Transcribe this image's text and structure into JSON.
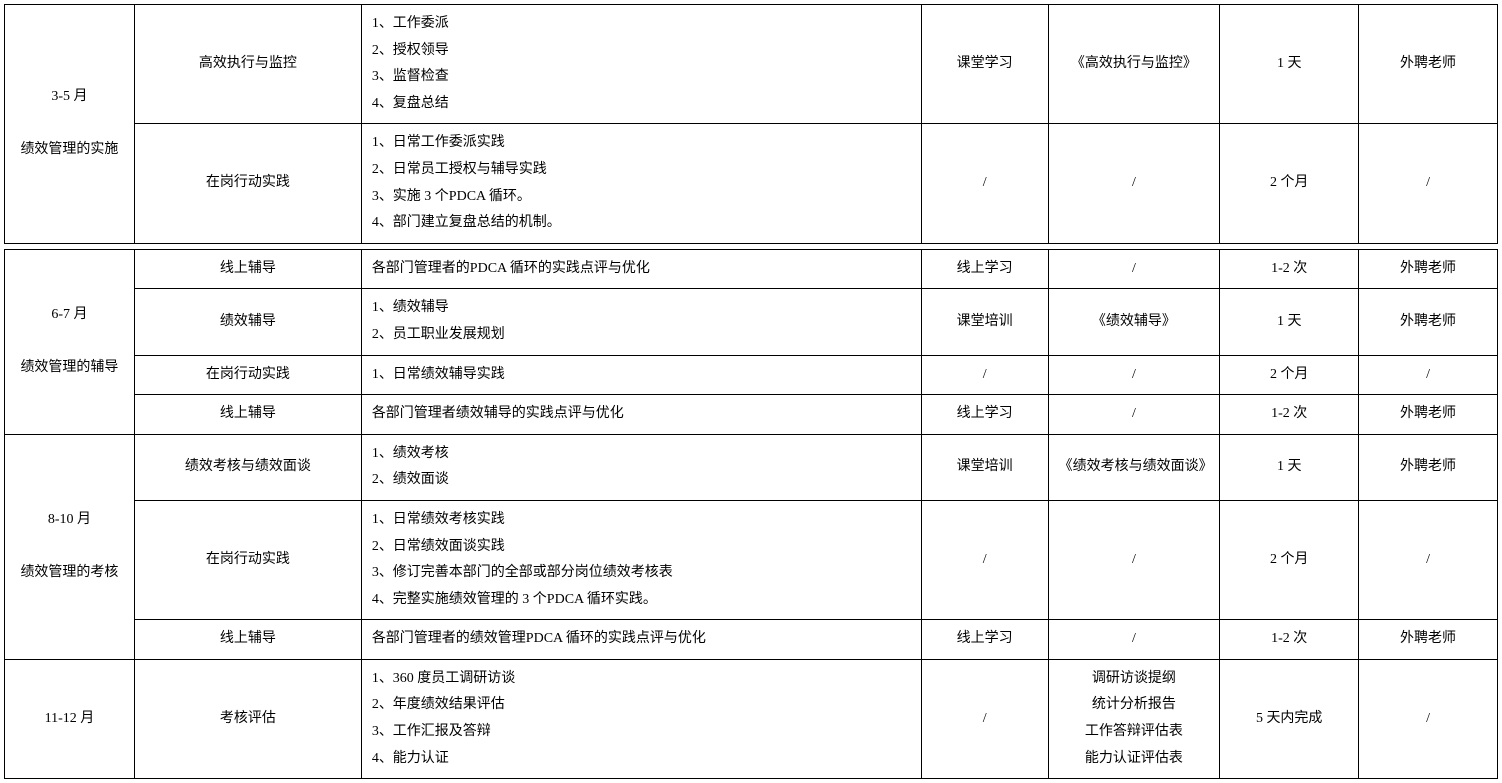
{
  "table": {
    "columns": [
      {
        "class": "c0",
        "align": "center"
      },
      {
        "class": "c1",
        "align": "center"
      },
      {
        "class": "c2",
        "align": "left"
      },
      {
        "class": "c3",
        "align": "center"
      },
      {
        "class": "c4",
        "align": "center"
      },
      {
        "class": "c5",
        "align": "center"
      },
      {
        "class": "c6",
        "align": "center"
      }
    ],
    "sections": [
      {
        "period": "3-5 月\n\n绩效管理的实施",
        "rows": [
          {
            "c1": "高效执行与监控",
            "c2": "1、工作委派\n2、授权领导\n3、监督检查\n4、复盘总结",
            "c3": "课堂学习",
            "c4": "《高效执行与监控》",
            "c5": "1 天",
            "c6": "外聘老师"
          },
          {
            "c1": "在岗行动实践",
            "c2": "1、日常工作委派实践\n2、日常员工授权与辅导实践\n3、实施 3 个PDCA 循环。\n4、部门建立复盘总结的机制。",
            "c3": "/",
            "c4": "/",
            "c5": "2 个月",
            "c6": "/"
          }
        ]
      },
      {
        "period": "6-7 月\n\n绩效管理的辅导",
        "rows": [
          {
            "c1": "线上辅导",
            "c2": "各部门管理者的PDCA 循环的实践点评与优化",
            "c3": "线上学习",
            "c4": "/",
            "c5": "1-2 次",
            "c6": "外聘老师"
          },
          {
            "c1": "绩效辅导",
            "c2": "1、绩效辅导\n2、员工职业发展规划",
            "c3": "课堂培训",
            "c4": "《绩效辅导》",
            "c5": "1 天",
            "c6": "外聘老师"
          },
          {
            "c1": "在岗行动实践",
            "c2": "1、日常绩效辅导实践",
            "c3": "/",
            "c4": "/",
            "c5": "2 个月",
            "c6": "/"
          },
          {
            "c1": "线上辅导",
            "c2": "各部门管理者绩效辅导的实践点评与优化",
            "c3": "线上学习",
            "c4": "/",
            "c5": "1-2 次",
            "c6": "外聘老师"
          }
        ]
      },
      {
        "period": "8-10 月\n\n绩效管理的考核",
        "rows": [
          {
            "c1": "绩效考核与绩效面谈",
            "c2": "1、绩效考核\n2、绩效面谈",
            "c3": "课堂培训",
            "c4": "《绩效考核与绩效面谈》",
            "c5": "1 天",
            "c6": "外聘老师"
          },
          {
            "c1": "在岗行动实践",
            "c2": "1、日常绩效考核实践\n2、日常绩效面谈实践\n3、修订完善本部门的全部或部分岗位绩效考核表\n4、完整实施绩效管理的 3 个PDCA 循环实践。",
            "c3": "/",
            "c4": "/",
            "c5": "2 个月",
            "c6": "/"
          },
          {
            "c1": "线上辅导",
            "c2": "各部门管理者的绩效管理PDCA 循环的实践点评与优化",
            "c3": "线上学习",
            "c4": "/",
            "c5": "1-2 次",
            "c6": "外聘老师"
          }
        ]
      },
      {
        "period": "11-12 月",
        "rows": [
          {
            "c1": "考核评估",
            "c2": "1、360 度员工调研访谈\n2、年度绩效结果评估\n3、工作汇报及答辩\n4、能力认证",
            "c3": "/",
            "c4": "调研访谈提纲\n统计分析报告\n工作答辩评估表\n能力认证评估表",
            "c5": "5 天内完成",
            "c6": "/"
          }
        ]
      }
    ]
  },
  "style": {
    "font_family": "SimSun",
    "font_size_pt": 11,
    "line_height": 1.9,
    "border_color": "#000000",
    "background_color": "#ffffff",
    "text_color": "#000000"
  }
}
